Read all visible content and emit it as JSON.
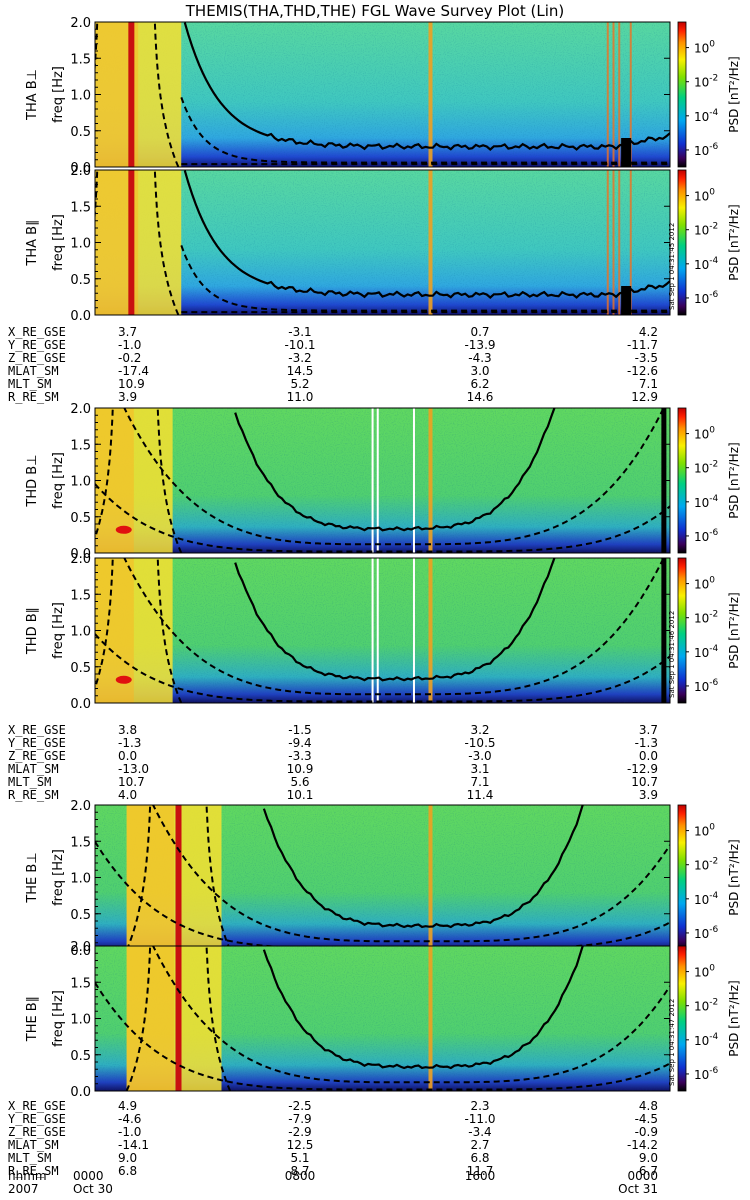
{
  "title": "THEMIS(THA,THD,THE) FGL Wave Survey Plot (Lin)",
  "chart_data": {
    "type": "heatmap",
    "colorbar": {
      "label": "PSD [nT²/Hz]",
      "ticks": [
        {
          "label": "10",
          "exp": "0",
          "log": 0
        },
        {
          "label": "10",
          "exp": "-2",
          "log": -2
        },
        {
          "label": "10",
          "exp": "-4",
          "log": -4
        },
        {
          "label": "10",
          "exp": "-6",
          "log": -6
        }
      ]
    },
    "yaxis": {
      "label": "freq [Hz]",
      "ylim": [
        0,
        2.0
      ],
      "ticks": [
        "0.0",
        "0.5",
        "1.0",
        "1.5",
        "2.0"
      ]
    },
    "probes": [
      {
        "id": "THA",
        "panels": [
          {
            "label": "THA B⊥",
            "timestamp": ""
          },
          {
            "label": "THA B∥",
            "timestamp": "Sat Sep  1 04:31:45 2012"
          }
        ],
        "ephemeris": [
          {
            "name": "X_RE_GSE",
            "values": [
              "3.7",
              "-3.1",
              "0.7",
              "4.2"
            ]
          },
          {
            "name": "Y_RE_GSE",
            "values": [
              "-1.0",
              "-10.1",
              "-13.9",
              "-11.7"
            ]
          },
          {
            "name": "Z_RE_GSE",
            "values": [
              "-0.2",
              "-3.2",
              "-4.3",
              "-3.5"
            ]
          },
          {
            "name": "MLAT_SM",
            "values": [
              "-17.4",
              "14.5",
              "3.0",
              "-12.6"
            ]
          },
          {
            "name": "MLT_SM",
            "values": [
              "10.9",
              "5.2",
              "6.2",
              "7.1"
            ]
          },
          {
            "name": "R_RE_SM",
            "values": [
              "3.9",
              "11.0",
              "14.6",
              "12.9"
            ]
          }
        ]
      },
      {
        "id": "THD",
        "panels": [
          {
            "label": "THD B⊥",
            "timestamp": ""
          },
          {
            "label": "THD B∥",
            "timestamp": "Sat Sep  1 04:31:46 2012"
          }
        ],
        "ephemeris": [
          {
            "name": "X_RE_GSE",
            "values": [
              "3.8",
              "-1.5",
              "3.2",
              "3.7"
            ]
          },
          {
            "name": "Y_RE_GSE",
            "values": [
              "-1.3",
              "-9.4",
              "-10.5",
              "-1.3"
            ]
          },
          {
            "name": "Z_RE_GSE",
            "values": [
              "0.0",
              "-3.3",
              "-3.0",
              "0.0"
            ]
          },
          {
            "name": "MLAT_SM",
            "values": [
              "-13.0",
              "10.9",
              "3.1",
              "-12.9"
            ]
          },
          {
            "name": "MLT_SM",
            "values": [
              "10.7",
              "5.6",
              "7.1",
              "10.7"
            ]
          },
          {
            "name": "R_RE_SM",
            "values": [
              "4.0",
              "10.1",
              "11.4",
              "3.9"
            ]
          }
        ]
      },
      {
        "id": "THE",
        "panels": [
          {
            "label": "THE B⊥",
            "timestamp": ""
          },
          {
            "label": "THE B∥",
            "timestamp": "Sat Sep  1 04:31:47 2012"
          }
        ],
        "ephemeris": [
          {
            "name": "X_RE_GSE",
            "values": [
              "4.9",
              "-2.5",
              "2.3",
              "4.8"
            ]
          },
          {
            "name": "Y_RE_GSE",
            "values": [
              "-4.6",
              "-7.9",
              "-11.0",
              "-4.5"
            ]
          },
          {
            "name": "Z_RE_GSE",
            "values": [
              "-1.0",
              "-2.9",
              "-3.4",
              "-0.9"
            ]
          },
          {
            "name": "MLAT_SM",
            "values": [
              "-14.1",
              "12.5",
              "2.7",
              "-14.2"
            ]
          },
          {
            "name": "MLT_SM",
            "values": [
              "9.0",
              "5.1",
              "6.8",
              "9.0"
            ]
          },
          {
            "name": "R_RE_SM",
            "values": [
              "6.8",
              "8.7",
              "11.7",
              "6.7"
            ]
          }
        ]
      }
    ],
    "time_axis": {
      "hhmm_label": "hhmm",
      "date_label": "2007",
      "ticks": [
        {
          "time": "0000",
          "date": "Oct 30"
        },
        {
          "time": "0800",
          "date": ""
        },
        {
          "time": "1600",
          "date": ""
        },
        {
          "time": "0000",
          "date": "Oct 31"
        }
      ]
    }
  }
}
